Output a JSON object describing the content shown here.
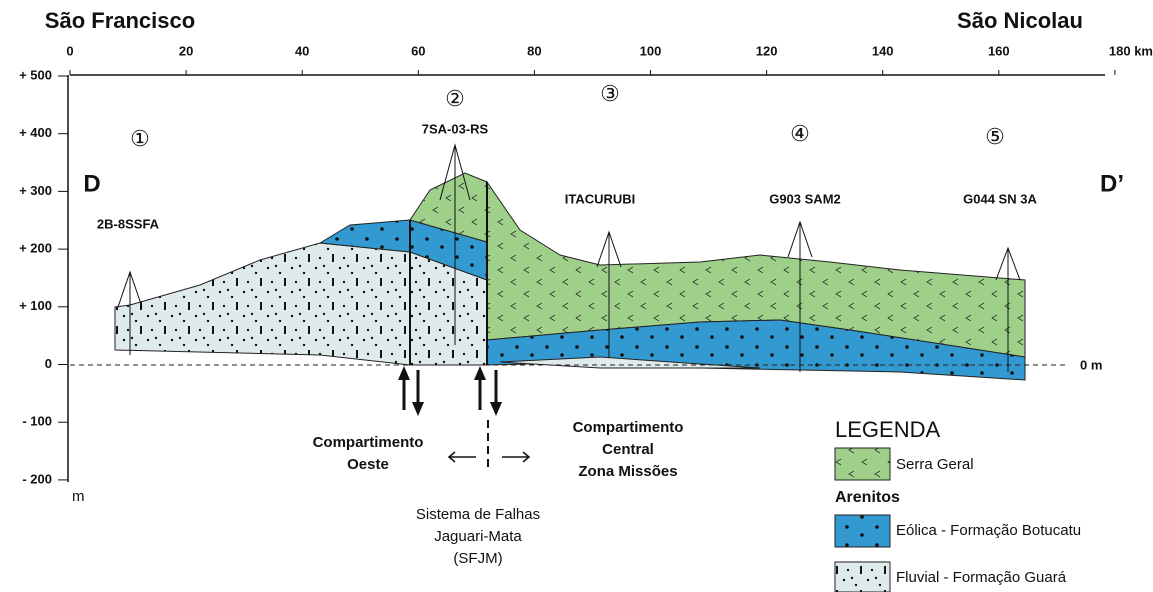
{
  "header": {
    "left": "São Francisco",
    "right": "São Nicolau"
  },
  "distance_axis": {
    "ticks": [
      "0",
      "20",
      "40",
      "60",
      "80",
      "100",
      "120",
      "140",
      "160",
      "180 km"
    ]
  },
  "elevation_axis": {
    "ticks": [
      "+ 500",
      "+ 400",
      "+ 300",
      "+ 200",
      "+ 100",
      "0",
      "- 100",
      "- 200"
    ],
    "unit": "m"
  },
  "section": {
    "start": "D",
    "end": "D’"
  },
  "markers": [
    "①",
    "②",
    "③",
    "④",
    "⑤"
  ],
  "wells": [
    "2B-8SSFA",
    "7SA-03-RS",
    "ITACURUBI",
    "G903 SAM2",
    "G044 SN 3A"
  ],
  "sea_level": "0 m",
  "annotations": {
    "west": [
      "Compartimento",
      "Oeste"
    ],
    "central": [
      "Compartimento",
      "Central",
      "Zona Missões"
    ],
    "fault_system": [
      "Sistema de Falhas",
      "Jaguari-Mata",
      "(SFJM)"
    ]
  },
  "legend": {
    "title": "LEGENDA",
    "group": "Arenitos",
    "items": [
      "Serra Geral",
      "Eólica - Formação Botucatu",
      "Fluvial - Formação Guará"
    ]
  }
}
